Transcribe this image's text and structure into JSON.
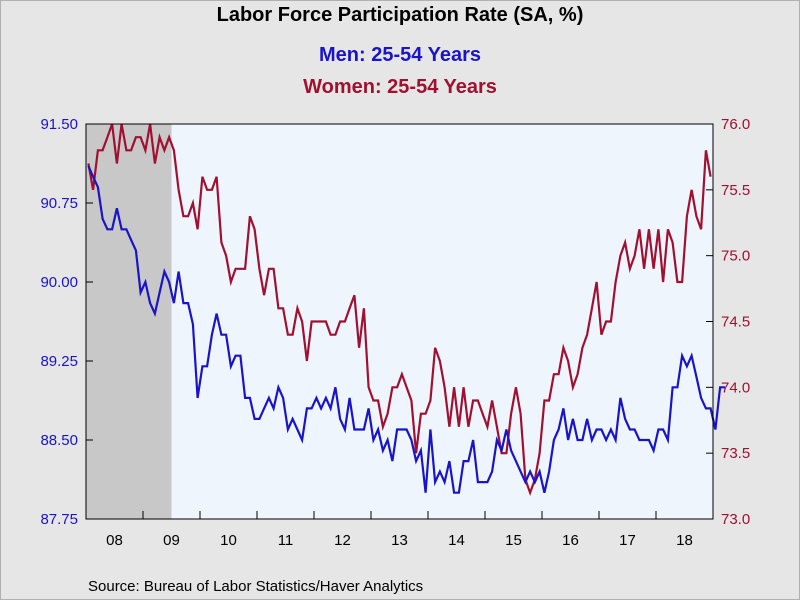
{
  "title": "Labor Force Participation Rate (SA, %)",
  "source": "Source:  Bureau of Labor Statistics/Haver Analytics",
  "colors": {
    "men": "#1a14c8",
    "women": "#a01030",
    "plot_bg": "#eef5fc",
    "recession": "#c8c8c8",
    "page_bg": "#e6e6e6"
  },
  "chart_data": {
    "type": "line",
    "title": "Labor Force Participation Rate (SA, %)",
    "xlabel": "",
    "x_ticks": [
      "08",
      "09",
      "10",
      "11",
      "12",
      "13",
      "14",
      "15",
      "16",
      "17",
      "18"
    ],
    "x_range": [
      "2008-01",
      "2018-12"
    ],
    "recession": {
      "start": "2008-01",
      "end": "2009-06"
    },
    "grid": false,
    "legend": "top (series titles)",
    "left_axis": {
      "series": "men",
      "ylim": [
        87.75,
        91.5
      ],
      "ticks": [
        "91.50",
        "90.75",
        "90.00",
        "89.25",
        "88.50",
        "87.75"
      ]
    },
    "right_axis": {
      "series": "women",
      "ylim": [
        73.0,
        76.0
      ],
      "ticks": [
        "76.0",
        "75.5",
        "75.0",
        "74.5",
        "74.0",
        "73.5",
        "73.0"
      ]
    },
    "series": [
      {
        "name": "Men: 25-54 Years",
        "axis": "left",
        "start": "2008-01",
        "freq": "monthly",
        "values": [
          91.1,
          91.0,
          90.9,
          90.6,
          90.5,
          90.5,
          90.7,
          90.5,
          90.5,
          90.4,
          90.3,
          89.9,
          90.0,
          89.8,
          89.7,
          89.9,
          90.1,
          90.0,
          89.8,
          90.1,
          89.8,
          89.8,
          89.6,
          88.9,
          89.2,
          89.2,
          89.5,
          89.7,
          89.5,
          89.5,
          89.2,
          89.3,
          89.3,
          88.9,
          88.9,
          88.7,
          88.7,
          88.8,
          88.9,
          88.8,
          89.0,
          88.9,
          88.6,
          88.7,
          88.6,
          88.5,
          88.8,
          88.8,
          88.9,
          88.8,
          88.9,
          88.8,
          89.0,
          88.7,
          88.6,
          88.9,
          88.6,
          88.6,
          88.6,
          88.8,
          88.5,
          88.6,
          88.4,
          88.5,
          88.3,
          88.6,
          88.6,
          88.6,
          88.5,
          88.3,
          88.4,
          88.0,
          88.6,
          88.1,
          88.2,
          88.1,
          88.3,
          88.0,
          88.0,
          88.3,
          88.3,
          88.5,
          88.1,
          88.1,
          88.1,
          88.2,
          88.5,
          88.4,
          88.6,
          88.4,
          88.3,
          88.2,
          88.1,
          88.2,
          88.1,
          88.2,
          88.0,
          88.2,
          88.5,
          88.6,
          88.8,
          88.5,
          88.7,
          88.5,
          88.5,
          88.7,
          88.5,
          88.6,
          88.6,
          88.5,
          88.6,
          88.5,
          88.9,
          88.7,
          88.6,
          88.6,
          88.5,
          88.5,
          88.5,
          88.4,
          88.6,
          88.6,
          88.5,
          89.0,
          89.0,
          89.3,
          89.2,
          89.3,
          89.1,
          88.9,
          88.8,
          88.8,
          88.6,
          89.0,
          89.0
        ]
      },
      {
        "name": "Women: 25-54 Years",
        "axis": "right",
        "start": "2008-01",
        "freq": "monthly",
        "values": [
          75.7,
          75.5,
          75.8,
          75.8,
          75.9,
          76.0,
          75.7,
          76.0,
          75.8,
          75.8,
          75.9,
          75.9,
          75.8,
          76.0,
          75.7,
          75.9,
          75.8,
          75.9,
          75.8,
          75.5,
          75.3,
          75.3,
          75.4,
          75.2,
          75.6,
          75.5,
          75.5,
          75.6,
          75.1,
          75.0,
          74.8,
          74.9,
          74.9,
          74.9,
          75.3,
          75.2,
          74.9,
          74.7,
          74.9,
          74.9,
          74.6,
          74.6,
          74.4,
          74.4,
          74.6,
          74.5,
          74.2,
          74.5,
          74.5,
          74.5,
          74.5,
          74.4,
          74.4,
          74.5,
          74.5,
          74.6,
          74.7,
          74.3,
          74.6,
          74.0,
          73.9,
          73.9,
          73.7,
          73.8,
          74.0,
          74.0,
          74.1,
          74.0,
          73.9,
          73.5,
          73.8,
          73.8,
          73.9,
          74.3,
          74.2,
          74.0,
          73.7,
          74.0,
          73.7,
          74.0,
          73.7,
          73.9,
          73.9,
          73.8,
          73.7,
          73.9,
          73.7,
          73.5,
          73.5,
          73.8,
          74.0,
          73.8,
          73.3,
          73.2,
          73.3,
          73.5,
          73.9,
          73.9,
          74.1,
          74.1,
          74.3,
          74.2,
          74.0,
          74.1,
          74.3,
          74.4,
          74.6,
          74.8,
          74.4,
          74.5,
          74.5,
          74.8,
          75.0,
          75.1,
          74.9,
          75.0,
          75.2,
          74.9,
          75.2,
          74.9,
          75.2,
          74.8,
          75.2,
          75.1,
          74.8,
          74.8,
          75.3,
          75.5,
          75.3,
          75.2,
          75.8,
          75.6
        ]
      }
    ]
  }
}
